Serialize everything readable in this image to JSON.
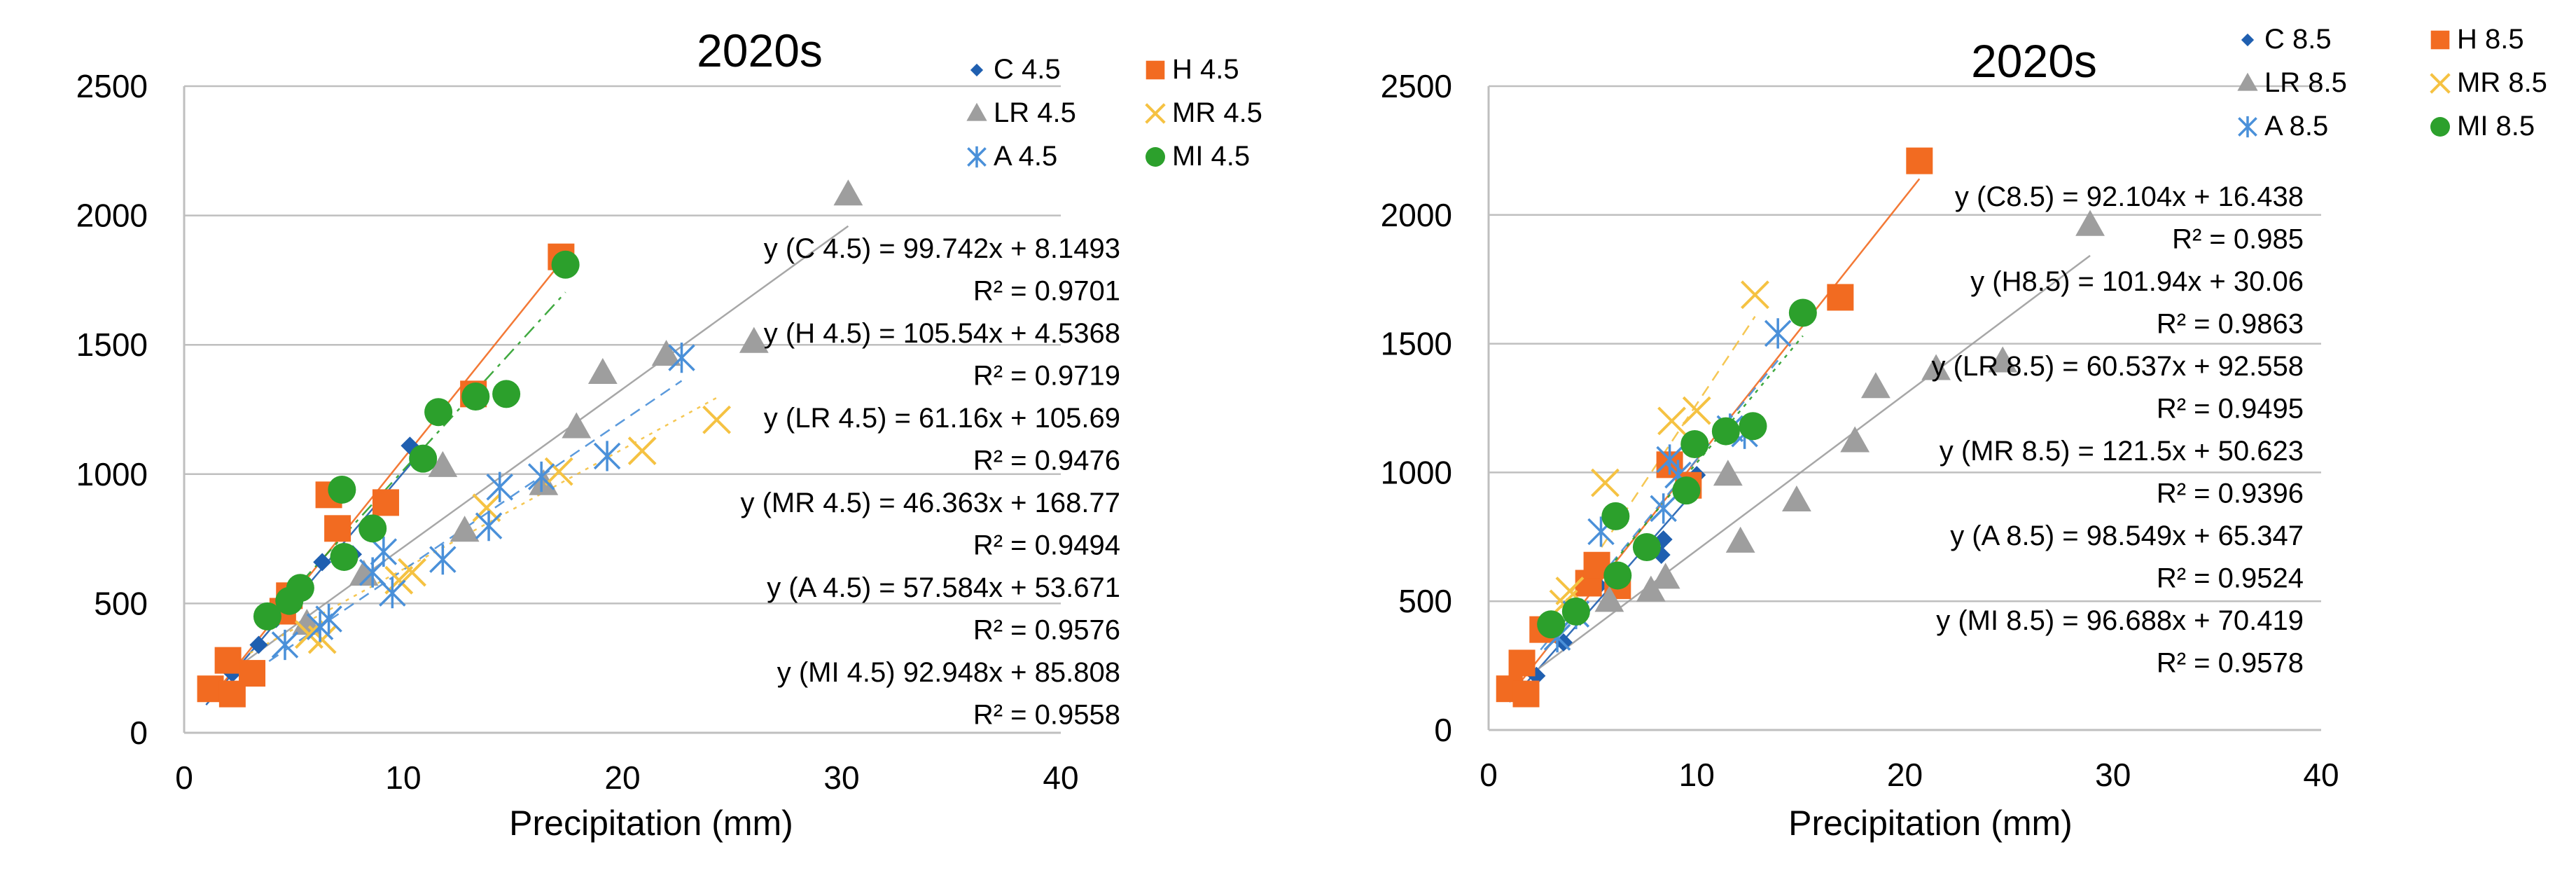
{
  "chart_data": [
    {
      "type": "scatter",
      "title": "2020s",
      "xlabel": "Precipitation (mm)",
      "ylabel": "",
      "xlim": [
        0,
        40
      ],
      "ylim": [
        0,
        2500
      ],
      "xticks": [
        "0",
        "10",
        "20",
        "30",
        "40"
      ],
      "yticks": [
        "0",
        "500",
        "1000",
        "1500",
        "2000",
        "2500"
      ],
      "legend_position": "top-right",
      "series": [
        {
          "name": "C 4.5",
          "marker": "diamond",
          "color": "#1f5fb0",
          "line_style": "solid",
          "trend": {
            "slope": 99.742,
            "intercept": 8.1493,
            "x_range": [
              1,
              10.5
            ]
          },
          "points": [
            [
              1.5,
              160
            ],
            [
              2.2,
              230
            ],
            [
              3.4,
              340
            ],
            [
              4.2,
              440
            ],
            [
              5.1,
              520
            ],
            [
              6.3,
              660
            ],
            [
              7.7,
              690
            ],
            [
              10.3,
              1110
            ]
          ]
        },
        {
          "name": "H 4.5",
          "marker": "square",
          "color": "#f26b21",
          "line_style": "solid",
          "trend": {
            "slope": 105.54,
            "intercept": 4.5368,
            "x_range": [
              1.2,
              17.2
            ]
          },
          "points": [
            [
              1.2,
              170
            ],
            [
              2.0,
              280
            ],
            [
              2.2,
              150
            ],
            [
              3.1,
              230
            ],
            [
              4.5,
              470
            ],
            [
              4.8,
              530
            ],
            [
              6.6,
              920
            ],
            [
              7.0,
              790
            ],
            [
              9.2,
              890
            ],
            [
              13.2,
              1310
            ],
            [
              17.2,
              1840
            ]
          ]
        },
        {
          "name": "LR  4.5",
          "marker": "triangle",
          "color": "#9e9e9e",
          "line_style": "solid",
          "trend": {
            "slope": 61.16,
            "intercept": 105.69,
            "x_range": [
              2,
              30.3
            ]
          },
          "points": [
            [
              5.6,
              420
            ],
            [
              8.2,
              610
            ],
            [
              11.8,
              1030
            ],
            [
              12.8,
              780
            ],
            [
              16.4,
              960
            ],
            [
              17.9,
              1180
            ],
            [
              19.1,
              1390
            ],
            [
              22.0,
              1460
            ],
            [
              26.0,
              1510
            ],
            [
              30.3,
              2080
            ]
          ]
        },
        {
          "name": "MR  4.5",
          "marker": "x",
          "color": "#f5c242",
          "line_style": "dotted",
          "trend": {
            "slope": 46.363,
            "intercept": 168.77,
            "x_range": [
              3,
              24.3
            ]
          },
          "points": [
            [
              5.7,
              380
            ],
            [
              6.3,
              360
            ],
            [
              9.8,
              590
            ],
            [
              10.4,
              620
            ],
            [
              13.8,
              870
            ],
            [
              17.1,
              1010
            ],
            [
              20.9,
              1090
            ],
            [
              24.3,
              1210
            ]
          ]
        },
        {
          "name": "A 4.5",
          "marker": "asterisk",
          "color": "#4a90d9",
          "line_style": "dashed",
          "trend": {
            "slope": 57.584,
            "intercept": 53.671,
            "x_range": [
              2.5,
              22.7
            ]
          },
          "points": [
            [
              4.6,
              340
            ],
            [
              6.2,
              410
            ],
            [
              6.6,
              440
            ],
            [
              8.6,
              620
            ],
            [
              9.1,
              700
            ],
            [
              9.5,
              540
            ],
            [
              11.8,
              670
            ],
            [
              13.9,
              800
            ],
            [
              14.4,
              950
            ],
            [
              16.3,
              990
            ],
            [
              19.3,
              1070
            ],
            [
              22.7,
              1450
            ]
          ]
        },
        {
          "name": "MI 4.5",
          "marker": "circle",
          "color": "#2ca02c",
          "line_style": "dashdot",
          "trend": {
            "slope": 92.948,
            "intercept": 85.808,
            "x_range": [
              3.5,
              17.4
            ]
          },
          "points": [
            [
              3.8,
              450
            ],
            [
              4.8,
              510
            ],
            [
              5.3,
              560
            ],
            [
              7.2,
              940
            ],
            [
              7.3,
              680
            ],
            [
              8.6,
              790
            ],
            [
              10.9,
              1060
            ],
            [
              11.6,
              1240
            ],
            [
              13.3,
              1300
            ],
            [
              14.7,
              1310
            ],
            [
              17.4,
              1810
            ]
          ]
        }
      ],
      "equations": [
        "y (C 4.5)  = 99.742x + 8.1493",
        "R² = 0.9701",
        "y (H 4.5) = 105.54x + 4.5368",
        "R² = 0.9719",
        "y (LR 4.5)  = 61.16x + 105.69",
        "R² = 0.9476",
        "y (MR 4.5) = 46.363x + 168.77",
        "R² = 0.9494",
        "y (A 4.5) = 57.584x + 53.671",
        "R² = 0.9576",
        "y (MI 4.5)  92.948x + 85.808",
        "R² = 0.9558"
      ]
    },
    {
      "type": "scatter",
      "title": "2020s",
      "xlabel": "Precipitation (mm)",
      "ylabel": "",
      "xlim": [
        0,
        40
      ],
      "ylim": [
        0,
        2500
      ],
      "xticks": [
        "0",
        "10",
        "20",
        "30",
        "40"
      ],
      "yticks": [
        "0",
        "500",
        "1000",
        "1500",
        "2000",
        "2500"
      ],
      "legend_position": "top-right",
      "series": [
        {
          "name": "C 8.5",
          "marker": "diamond",
          "color": "#1f5fb0",
          "line_style": "solid",
          "trend": {
            "slope": 92.104,
            "intercept": 16.438,
            "x_range": [
              1,
              10
            ]
          },
          "points": [
            [
              1.5,
              170
            ],
            [
              2.3,
              210
            ],
            [
              3.6,
              340
            ],
            [
              4.4,
              440
            ],
            [
              5.3,
              560
            ],
            [
              8.3,
              680
            ],
            [
              8.4,
              740
            ],
            [
              10.0,
              990
            ]
          ]
        },
        {
          "name": "H 8.5",
          "marker": "square",
          "color": "#f26b21",
          "line_style": "solid",
          "trend": {
            "slope": 101.94,
            "intercept": 30.06,
            "x_range": [
              1,
              20.7
            ]
          },
          "points": [
            [
              1.0,
              160
            ],
            [
              1.6,
              260
            ],
            [
              1.8,
              140
            ],
            [
              2.6,
              390
            ],
            [
              4.8,
              570
            ],
            [
              5.2,
              640
            ],
            [
              6.2,
              560
            ],
            [
              8.7,
              1030
            ],
            [
              9.6,
              950
            ],
            [
              16.9,
              1680
            ],
            [
              20.7,
              2210
            ]
          ]
        },
        {
          "name": "LR  8.5",
          "marker": "triangle",
          "color": "#9e9e9e",
          "line_style": "solid",
          "trend": {
            "slope": 60.537,
            "intercept": 92.558,
            "x_range": [
              2,
              28.9
            ]
          },
          "points": [
            [
              5.8,
              500
            ],
            [
              7.8,
              540
            ],
            [
              8.5,
              590
            ],
            [
              11.5,
              990
            ],
            [
              12.1,
              730
            ],
            [
              14.8,
              890
            ],
            [
              17.6,
              1120
            ],
            [
              18.6,
              1330
            ],
            [
              21.5,
              1400
            ],
            [
              24.7,
              1430
            ],
            [
              28.9,
              1960
            ]
          ]
        },
        {
          "name": "MR  8.5",
          "marker": "x",
          "color": "#f5c242",
          "line_style": "dashed",
          "trend": {
            "slope": 121.5,
            "intercept": 50.623,
            "x_range": [
              3,
              12.8
            ]
          },
          "points": [
            [
              3.6,
              490
            ],
            [
              3.9,
              540
            ],
            [
              5.6,
              960
            ],
            [
              8.8,
              1200
            ],
            [
              10.0,
              1240
            ],
            [
              12.8,
              1690
            ]
          ]
        },
        {
          "name": "A 8.5",
          "marker": "asterisk",
          "color": "#4a90d9",
          "line_style": "dashed",
          "trend": {
            "slope": 98.549,
            "intercept": 65.347,
            "x_range": [
              2.5,
              13.9
            ]
          },
          "points": [
            [
              3.3,
              360
            ],
            [
              4.2,
              450
            ],
            [
              5.4,
              770
            ],
            [
              8.4,
              860
            ],
            [
              8.7,
              1050
            ],
            [
              9.1,
              990
            ],
            [
              11.6,
              1170
            ],
            [
              12.3,
              1150
            ],
            [
              13.9,
              1540
            ]
          ]
        },
        {
          "name": "MI 8.5",
          "marker": "circle",
          "color": "#2ca02c",
          "line_style": "dotted",
          "trend": {
            "slope": 96.688,
            "intercept": 70.419,
            "x_range": [
              3,
              15.1
            ]
          },
          "points": [
            [
              3.0,
              410
            ],
            [
              4.2,
              460
            ],
            [
              6.1,
              830
            ],
            [
              6.2,
              600
            ],
            [
              7.6,
              710
            ],
            [
              9.5,
              930
            ],
            [
              9.9,
              1110
            ],
            [
              11.4,
              1160
            ],
            [
              12.7,
              1180
            ],
            [
              15.1,
              1620
            ]
          ]
        }
      ],
      "equations": [
        "y (C8.5) = 92.104x + 16.438",
        "R² = 0.985",
        "y (H8.5) = 101.94x + 30.06",
        "R² = 0.9863",
        "y (LR 8.5) = 60.537x + 92.558",
        "R² = 0.9495",
        "y (MR 8.5) = 121.5x + 50.623",
        "R² = 0.9396",
        "y (A 8.5) = 98.549x + 65.347",
        "R² = 0.9524",
        "y (MI 8.5) = 96.688x + 70.419",
        "R² = 0.9578"
      ]
    }
  ]
}
